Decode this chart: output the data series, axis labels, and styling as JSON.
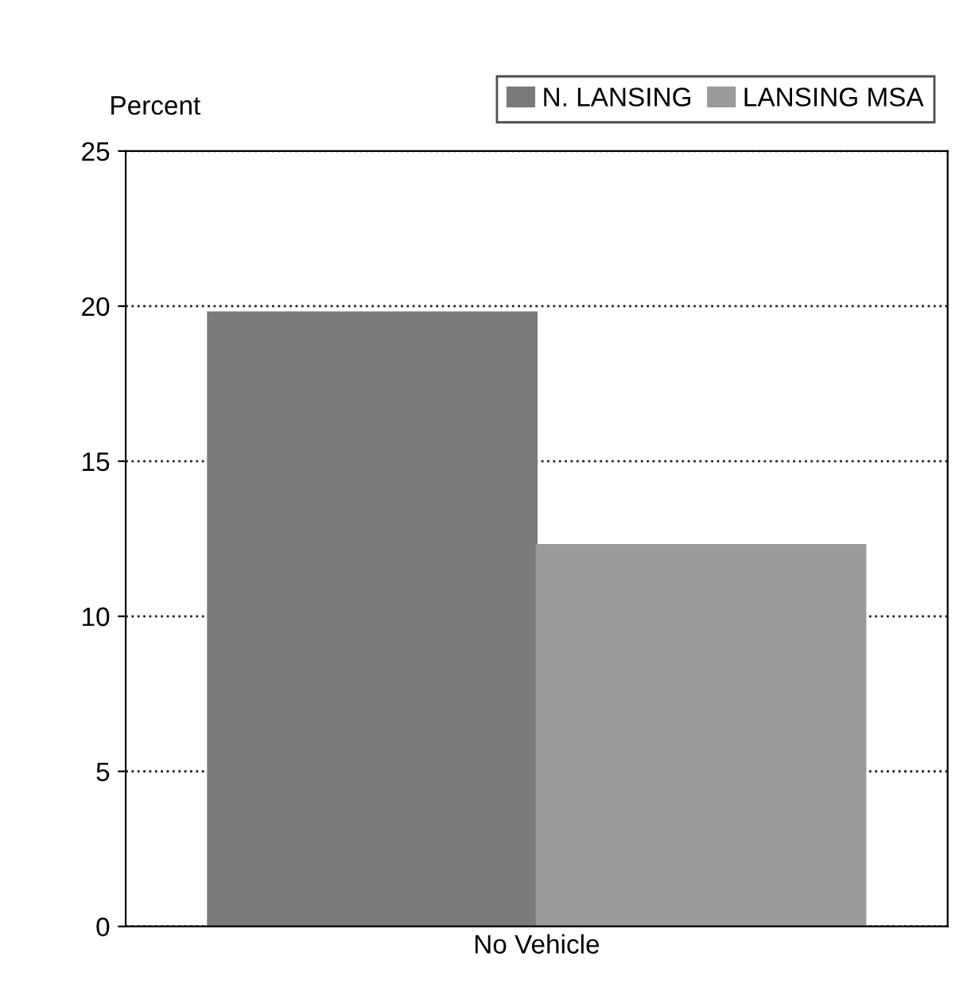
{
  "chart_data": {
    "type": "bar",
    "ylabel": "Percent",
    "categories": [
      "No Vehicle"
    ],
    "series": [
      {
        "name": "N. LANSING",
        "color": "#7a7a7a",
        "values": [
          19.8
        ]
      },
      {
        "name": "LANSING MSA",
        "color": "#9a9a9a",
        "values": [
          12.3
        ]
      }
    ],
    "ylim": [
      0,
      25
    ],
    "yticks": [
      0,
      5,
      10,
      15,
      20,
      25
    ],
    "grid": "y",
    "legend": "top right"
  }
}
